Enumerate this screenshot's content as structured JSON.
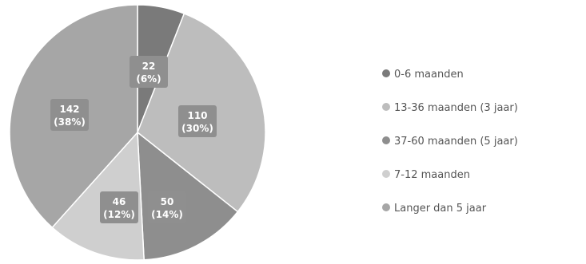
{
  "chart_data": {
    "type": "pie",
    "slices": [
      {
        "label": "0-6 maanden",
        "value": 22,
        "percent_label": "(6%)",
        "color": "#7a7a7a"
      },
      {
        "label": "13-36 maanden (3 jaar)",
        "value": 110,
        "percent_label": "(30%)",
        "color": "#bdbdbd"
      },
      {
        "label": "37-60 maanden (5 jaar)",
        "value": 50,
        "percent_label": "(14%)",
        "color": "#8e8e8e"
      },
      {
        "label": "7-12 maanden",
        "value": 46,
        "percent_label": "(12%)",
        "color": "#cfcfcf"
      },
      {
        "label": "Langer dan 5 jaar",
        "value": 142,
        "percent_label": "(38%)",
        "color": "#a6a6a6"
      }
    ],
    "label_box_color": "#8f8f8f",
    "legend_position": "right"
  }
}
